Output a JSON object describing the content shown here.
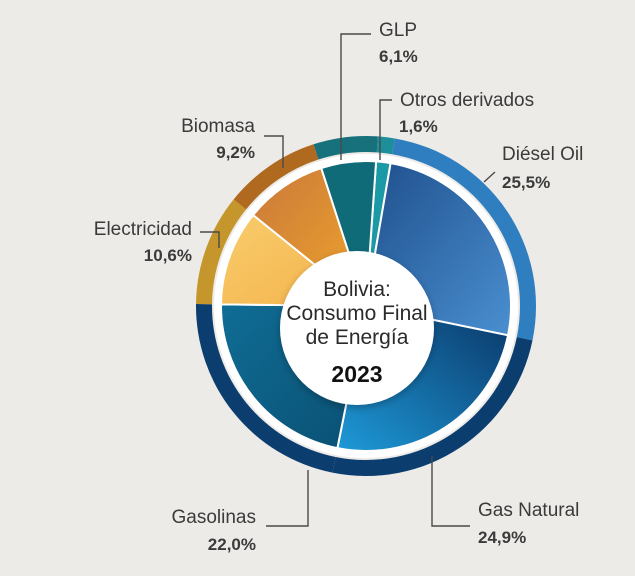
{
  "chart_data": {
    "type": "pie",
    "title": "Bolivia:\nConsumo Final\nde Energía",
    "title_lines": [
      "Bolivia:",
      "Consumo Final",
      "de Energía"
    ],
    "subtitle": "2023",
    "categories": [
      "Otros derivados",
      "Diésel Oil",
      "Gas Natural",
      "Gasolinas",
      "Electricidad",
      "Biomasa",
      "GLP"
    ],
    "values": [
      1.6,
      25.5,
      24.9,
      22.0,
      10.6,
      9.2,
      6.1
    ],
    "value_labels": [
      "1,6%",
      "25,5%",
      "24,9%",
      "22,0%",
      "10,6%",
      "9,2%",
      "6,1%"
    ],
    "colors": [
      "#1b9aa6",
      "#2d6fb0",
      "#1478c4",
      "#0d5e86",
      "#f6c35a",
      "#e08a2c",
      "#0f6b78"
    ],
    "outer_ring_colors": [
      "#1d8f9a",
      "#2f7fc0",
      "#0b3d6f",
      "#0b3d6f",
      "#c5962c",
      "#b06a1f",
      "#17717c"
    ]
  }
}
